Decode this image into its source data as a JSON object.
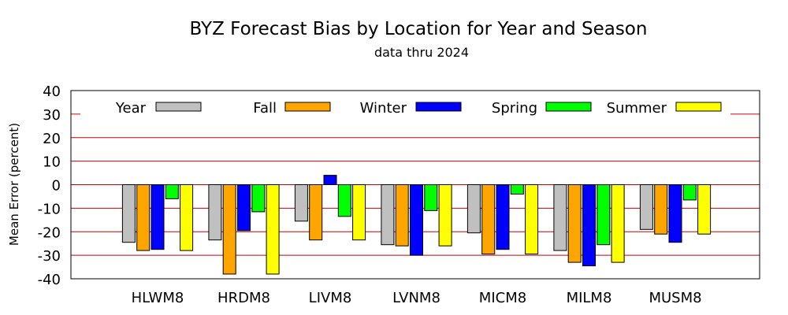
{
  "chart_data": {
    "type": "bar",
    "title": "BYZ Forecast Bias by Location for Year and Season",
    "subtitle": "data thru 2024",
    "xlabel": "",
    "ylabel": "Mean Error (percent)",
    "ylim": [
      -40,
      40
    ],
    "yticks": [
      "40",
      "30",
      "20",
      "10",
      "0",
      "-10",
      "-20",
      "-30",
      "-40"
    ],
    "grid": "horizontal",
    "legend_position": "top",
    "categories": [
      "HLWM8",
      "HRDM8",
      "LIVM8",
      "LVNM8",
      "MICM8",
      "MILM8",
      "MUSM8"
    ],
    "series": [
      {
        "name": "Year",
        "color": "#c0c0c0",
        "values": [
          -24.5,
          -23.5,
          -15.5,
          -25.5,
          -20.5,
          -28,
          -19
        ]
      },
      {
        "name": "Fall",
        "color": "#ffa500",
        "values": [
          -28,
          -38,
          -23.5,
          -26,
          -29.5,
          -33,
          -21
        ]
      },
      {
        "name": "Winter",
        "color": "#0000ff",
        "values": [
          -27.5,
          -19.5,
          4,
          -30,
          -27.5,
          -34.5,
          -24.5
        ]
      },
      {
        "name": "Spring",
        "color": "#00ff00",
        "values": [
          -6,
          -11.5,
          -13.5,
          -11,
          -4,
          -25.5,
          -6.5
        ]
      },
      {
        "name": "Summer",
        "color": "#ffff00",
        "values": [
          -28,
          -38,
          -23.5,
          -26,
          -29.5,
          -33,
          -21
        ]
      }
    ]
  }
}
